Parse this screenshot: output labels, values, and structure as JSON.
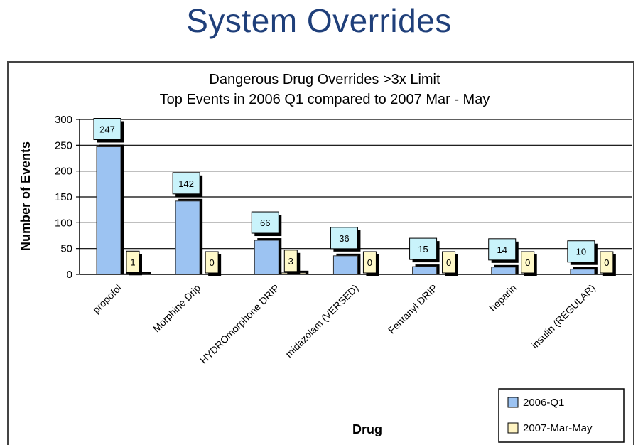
{
  "slide": {
    "title": "System Overrides"
  },
  "chart_data": {
    "type": "bar",
    "title": "Dangerous Drug Overrides >3x Limit",
    "subtitle": "Top Events in 2006 Q1 compared to 2007 Mar - May",
    "xlabel": "Drug",
    "ylabel": "Number of Events",
    "ylim": [
      0,
      300
    ],
    "yticks": [
      0,
      50,
      100,
      150,
      200,
      250,
      300
    ],
    "ytick_labels": [
      "0",
      "50",
      "100",
      "150",
      "200",
      "250",
      "300"
    ],
    "grid": true,
    "legend_position": "bottom-right",
    "categories": [
      "propofol",
      "Morphine Drip",
      "HYDROmorphone DRIP",
      "midazolam (VERSED)",
      "Fentanyl DRIP",
      "heparin",
      "insulin (REGULAR)"
    ],
    "series": [
      {
        "name": "2006-Q1",
        "color": "#9cc3f2",
        "values": [
          247,
          142,
          66,
          36,
          15,
          14,
          10
        ]
      },
      {
        "name": "2007-Mar-May",
        "color": "#fff4c2",
        "values": [
          1,
          0,
          3,
          0,
          0,
          0,
          0
        ]
      }
    ],
    "data_label_colors": [
      "#c9f3fb",
      "#fff9c9"
    ]
  }
}
